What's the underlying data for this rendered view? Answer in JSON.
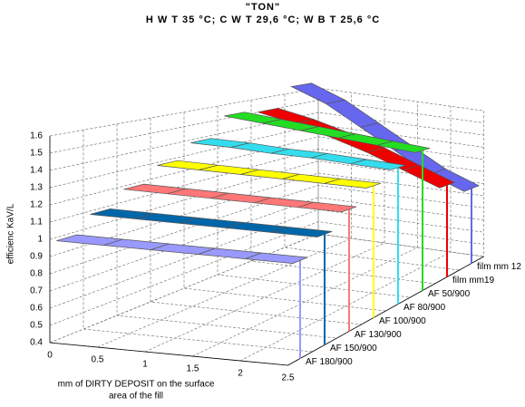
{
  "chart_data": {
    "type": "ribbon3d",
    "title": "\"TON\"",
    "subtitle": "H W T 35 °C; C W T 29,6 °C; W B T 25,6 °C",
    "ylabel": "efficienc KaV/L",
    "xlabel": [
      "mm of DIRTY DEPOSIT on the surface",
      "area of the fill"
    ],
    "x": [
      0,
      0.5,
      1,
      1.5,
      2,
      2.5
    ],
    "xlim": [
      0,
      2.5
    ],
    "xticks": [
      0,
      0.5,
      1,
      1.5,
      2,
      2.5
    ],
    "ylim": [
      0.4,
      1.6
    ],
    "yticks": [
      0.4,
      0.5,
      0.6,
      0.7,
      0.8,
      0.9,
      1,
      1.1,
      1.2,
      1.3,
      1.4,
      1.5,
      1.6
    ],
    "grid": true,
    "series": [
      {
        "name": "AF 180/900",
        "color": "#9999ff",
        "values": [
          0.98,
          0.98,
          0.98,
          0.98,
          0.98,
          0.98
        ]
      },
      {
        "name": "AF 150/900",
        "color": "#0066aa",
        "values": [
          1.08,
          1.08,
          1.08,
          1.08,
          1.08,
          1.08
        ]
      },
      {
        "name": "AF 130/900",
        "color": "#ff7777",
        "values": [
          1.18,
          1.18,
          1.18,
          1.18,
          1.18,
          1.18
        ]
      },
      {
        "name": "AF 100/900",
        "color": "#ffff00",
        "values": [
          1.28,
          1.28,
          1.28,
          1.28,
          1.28,
          1.28
        ]
      },
      {
        "name": "AF 80/900",
        "color": "#33ddee",
        "values": [
          1.38,
          1.38,
          1.37,
          1.37,
          1.36,
          1.35
        ]
      },
      {
        "name": "AF 50/900",
        "color": "#22dd22",
        "values": [
          1.52,
          1.5,
          1.48,
          1.46,
          1.44,
          1.42
        ]
      },
      {
        "name": "film mm19",
        "color": "#ee0000",
        "values": [
          1.5,
          1.45,
          1.38,
          1.3,
          1.2,
          1.1
        ]
      },
      {
        "name": "film mm 12",
        "color": "#6666ee",
        "values": [
          1.65,
          1.55,
          1.4,
          1.25,
          1.1,
          1.0
        ]
      }
    ]
  }
}
